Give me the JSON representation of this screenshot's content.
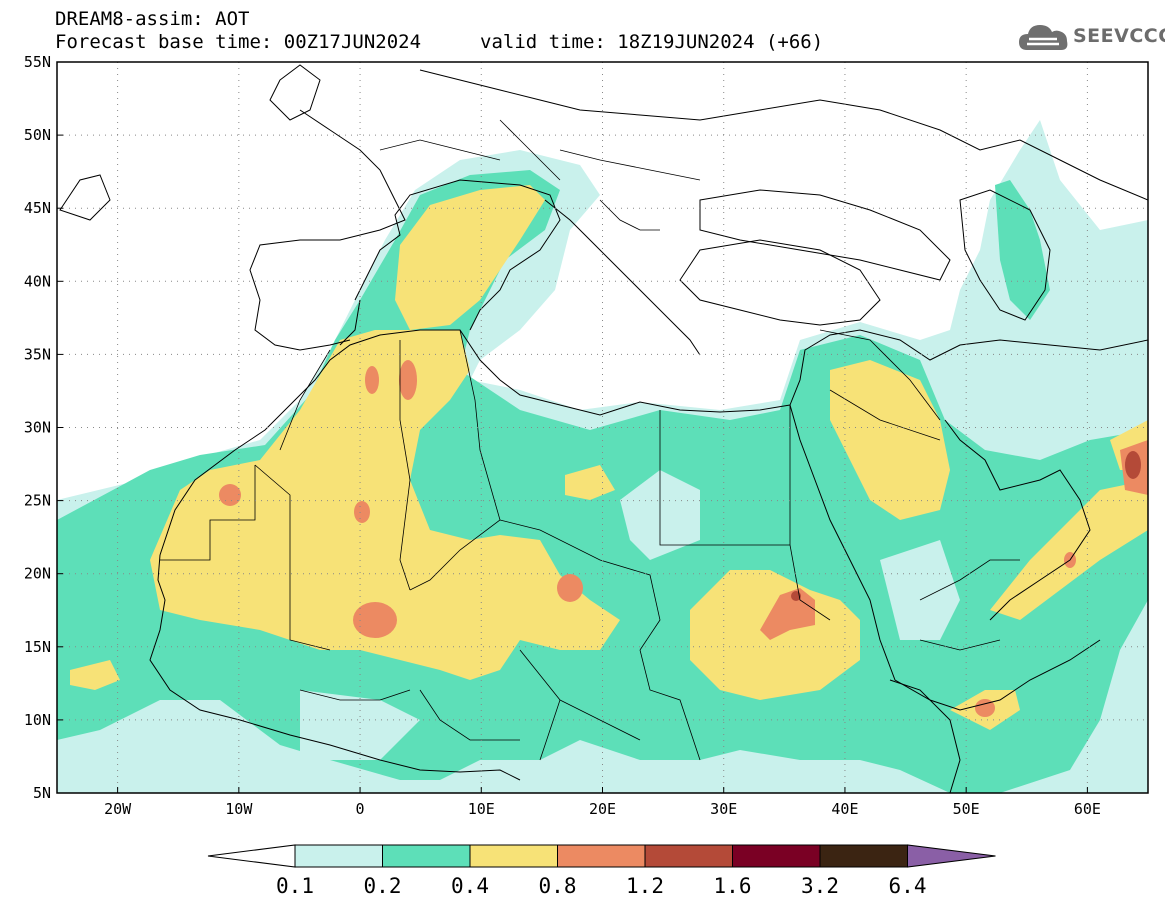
{
  "header": {
    "line1": "DREAM8-assim: AOT",
    "base_time": "Forecast base time: 00Z17JUN2024",
    "valid_time": "valid time: 18Z19JUN2024 (+66)"
  },
  "logo": {
    "text": "SEEVCCC",
    "icon": "cloud-icon"
  },
  "map": {
    "lat_labels": [
      "55N",
      "50N",
      "45N",
      "40N",
      "35N",
      "30N",
      "25N",
      "20N",
      "15N",
      "10N",
      "5N"
    ],
    "lon_labels": [
      "20W",
      "10W",
      "0",
      "10E",
      "20E",
      "30E",
      "40E",
      "50E",
      "60E"
    ],
    "grid": "dotted"
  },
  "colorbar": {
    "levels": [
      "0.1",
      "0.2",
      "0.4",
      "0.8",
      "1.2",
      "1.6",
      "3.2",
      "6.4"
    ],
    "colors": [
      "#c9f1ec",
      "#5ddfb8",
      "#f7e277",
      "#ec8a62",
      "#b44a38",
      "#7a0024",
      "#3b2412",
      "#8a5fa6"
    ],
    "under_color": "#ffffff"
  }
}
